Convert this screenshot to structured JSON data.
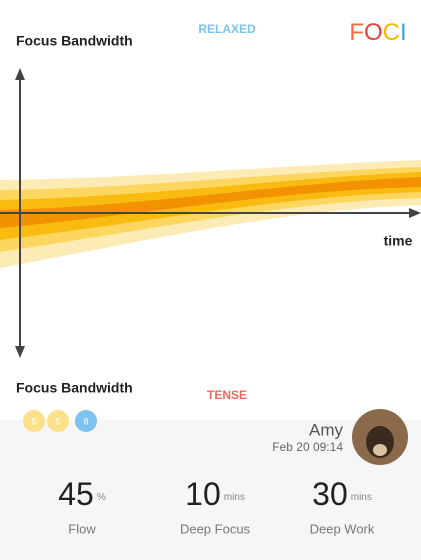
{
  "header": {
    "title": "Focus Bandwidth",
    "top_label": "RELAXED",
    "logo": [
      "F",
      "O",
      "C",
      "I"
    ]
  },
  "chart": {
    "x_label": "time",
    "bottom_title": "Focus Bandwidth",
    "bottom_label": "TENSE"
  },
  "badges": [
    "5",
    "5",
    "8"
  ],
  "user": {
    "name": "Amy",
    "date": "Feb 20 09:14"
  },
  "stats": [
    {
      "value": 45,
      "unit": "%",
      "label": "Flow"
    },
    {
      "value": 10,
      "unit": "mins",
      "label": "Deep Focus"
    },
    {
      "value": 30,
      "unit": "mins",
      "label": "Deep Work"
    }
  ]
}
